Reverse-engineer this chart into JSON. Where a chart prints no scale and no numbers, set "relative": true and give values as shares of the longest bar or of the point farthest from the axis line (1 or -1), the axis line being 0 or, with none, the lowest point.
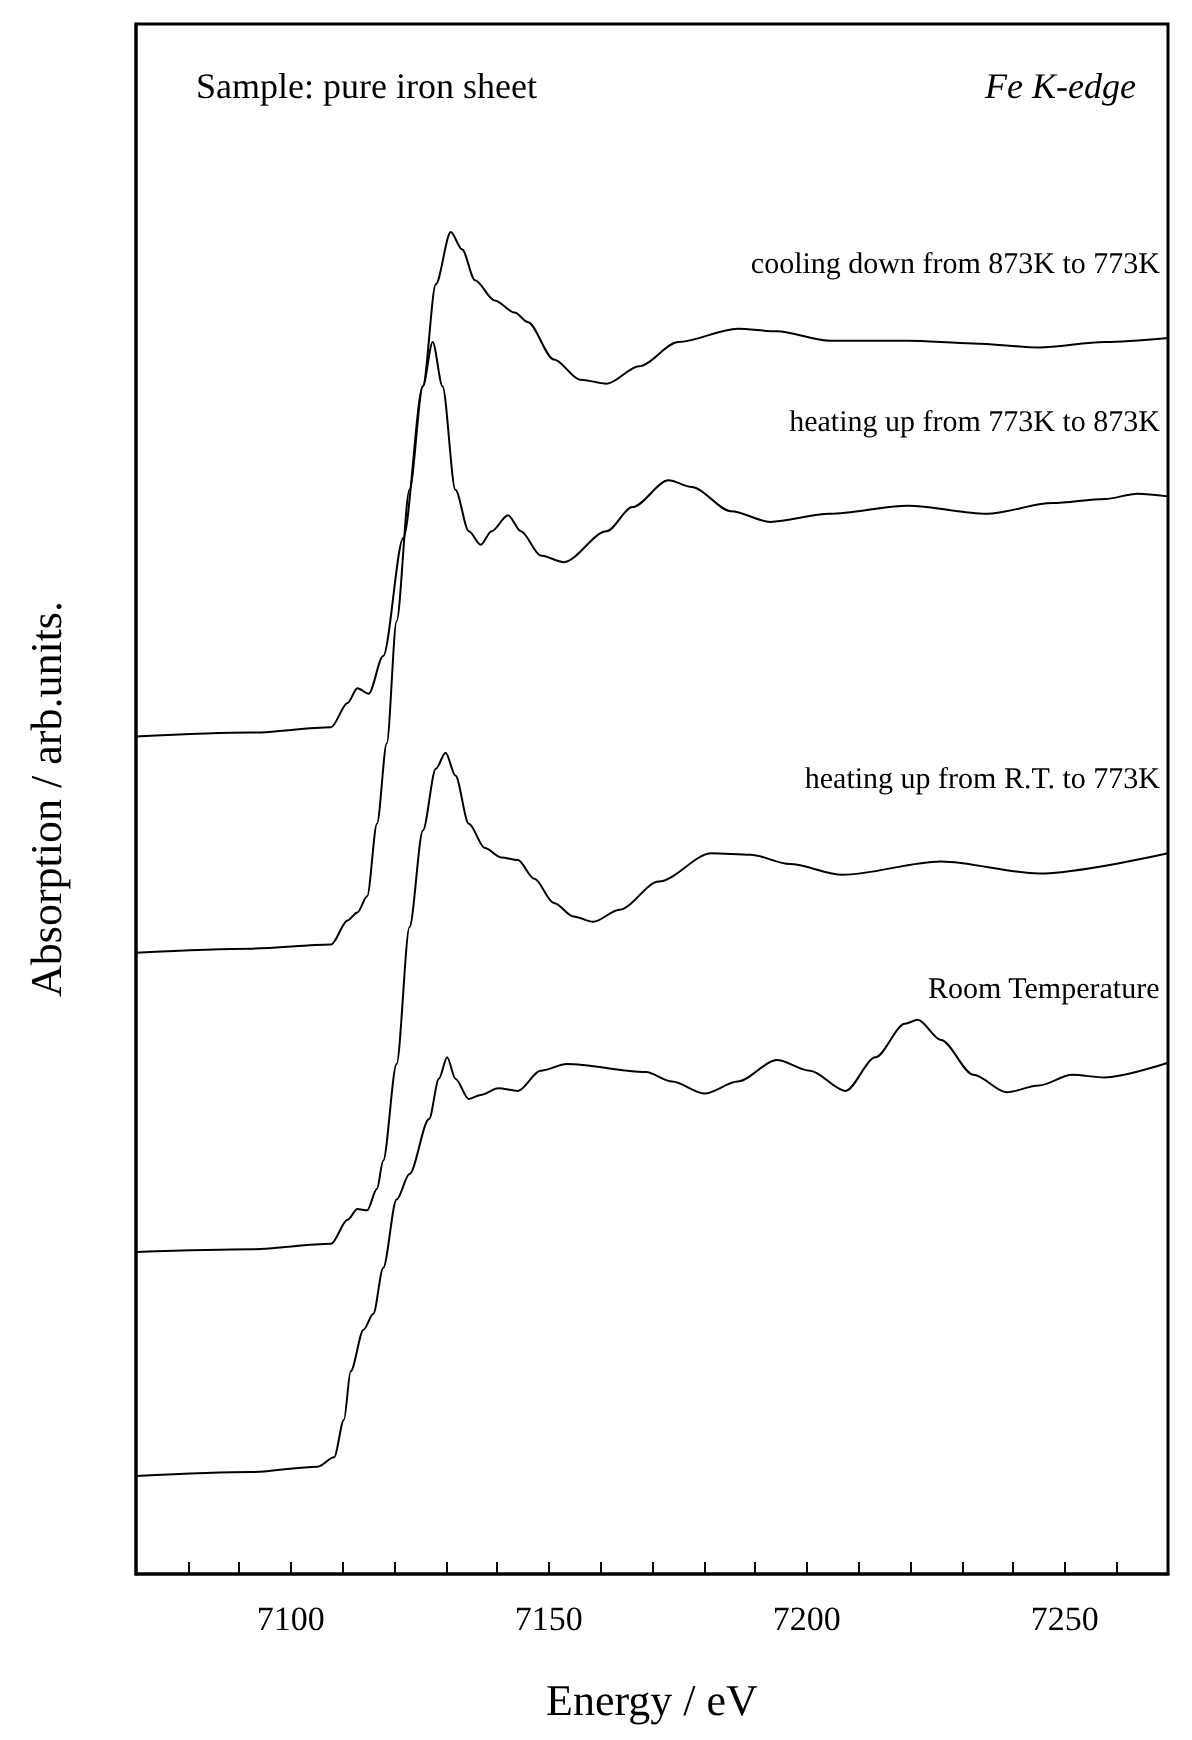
{
  "chart_data": {
    "type": "line",
    "xlabel": "Energy / eV",
    "ylabel": "Absorption / arb.units.",
    "relative": true,
    "legend": false,
    "grid": false,
    "marker": "none",
    "line_style": "solid",
    "annotations": [
      "Sample: pure iron sheet",
      "Fe K-edge"
    ],
    "xlim": [
      7070,
      7270
    ],
    "xticks": [
      {
        "value": 7080,
        "label": null
      },
      {
        "value": 7090,
        "label": null
      },
      7100,
      {
        "value": 7110,
        "label": null
      },
      {
        "value": 7120,
        "label": null
      },
      {
        "value": 7130,
        "label": null
      },
      {
        "value": 7140,
        "label": null
      },
      7150,
      {
        "value": 7160,
        "label": null
      },
      {
        "value": 7170,
        "label": null
      },
      {
        "value": 7180,
        "label": null
      },
      {
        "value": 7190,
        "label": null
      },
      7200,
      {
        "value": 7210,
        "label": null
      },
      {
        "value": 7220,
        "label": null
      },
      {
        "value": 7230,
        "label": null
      },
      {
        "value": 7240,
        "label": null
      },
      7250,
      {
        "value": 7260,
        "label": null
      }
    ],
    "series": [
      {
        "name": "cooling down from 873K to 773K",
        "color": "#000000",
        "x": [
          7070,
          7092.5,
          7107.8,
          7111,
          7112.9,
          7115.1,
          7117.9,
          7121.8,
          7125.6,
          7128.1,
          7131,
          7133.2,
          7135.7,
          7139.5,
          7143.4,
          7145.9,
          7151,
          7156.1,
          7161.2,
          7167.5,
          7175.1,
          7186.6,
          7194.2,
          7204.4,
          7219.6,
          7232.3,
          7245,
          7257.7,
          7270
        ],
        "values": [
          0.624,
          0.627,
          0.631,
          0.649,
          0.66,
          0.656,
          0.684,
          0.772,
          0.885,
          0.961,
          1,
          0.987,
          0.964,
          0.949,
          0.94,
          0.933,
          0.905,
          0.89,
          0.887,
          0.9,
          0.918,
          0.928,
          0.926,
          0.919,
          0.919,
          0.917,
          0.914,
          0.918,
          0.921
        ]
      },
      {
        "name": "heating up from 773K to 873K",
        "color": "#000000",
        "x": [
          7070,
          7092.5,
          7107.8,
          7111,
          7112.9,
          7114.8,
          7116.7,
          7118.6,
          7120.5,
          7123,
          7125.6,
          7127.5,
          7129.4,
          7131.9,
          7134.5,
          7136.8,
          7138.9,
          7142.1,
          7144.6,
          7148.4,
          7152.9,
          7161.2,
          7166.2,
          7173.2,
          7177.7,
          7185.3,
          7192.9,
          7204.4,
          7219.6,
          7234.9,
          7247.6,
          7257.7,
          7264.1,
          7270
        ],
        "values": [
          0.463,
          0.466,
          0.469,
          0.487,
          0.493,
          0.505,
          0.559,
          0.619,
          0.71,
          0.808,
          0.885,
          0.918,
          0.885,
          0.808,
          0.777,
          0.767,
          0.777,
          0.789,
          0.777,
          0.759,
          0.754,
          0.777,
          0.795,
          0.815,
          0.81,
          0.792,
          0.784,
          0.79,
          0.796,
          0.79,
          0.798,
          0.801,
          0.805,
          0.803
        ]
      },
      {
        "name": "heating up from R.T. to 773K",
        "color": "#000000",
        "x": [
          7070,
          7092.5,
          7107.8,
          7111,
          7112.9,
          7114.8,
          7116.7,
          7117.9,
          7120.5,
          7123,
          7125.6,
          7128.1,
          7130,
          7131.9,
          7134.5,
          7137.6,
          7140.8,
          7144,
          7147.2,
          7151,
          7154.8,
          7158.6,
          7163.7,
          7171.3,
          7181.5,
          7189.1,
          7196.7,
          7206.9,
          7226,
          7245,
          7270
        ],
        "values": [
          0.24,
          0.242,
          0.246,
          0.264,
          0.272,
          0.271,
          0.287,
          0.308,
          0.38,
          0.482,
          0.554,
          0.6,
          0.612,
          0.595,
          0.559,
          0.541,
          0.534,
          0.532,
          0.518,
          0.5,
          0.49,
          0.486,
          0.495,
          0.516,
          0.537,
          0.536,
          0.529,
          0.521,
          0.531,
          0.522,
          0.537
        ]
      },
      {
        "name": "Room Temperature",
        "color": "#000000",
        "x": [
          7070,
          7092.5,
          7105.2,
          7108.4,
          7110.3,
          7111.6,
          7114.1,
          7116,
          7117.9,
          7120.5,
          7123,
          7126.8,
          7128.7,
          7130.3,
          7131.9,
          7134.5,
          7136.8,
          7140.2,
          7144,
          7148.4,
          7153.5,
          7168.8,
          7173.9,
          7180.2,
          7186.6,
          7194.2,
          7200.6,
          7207.5,
          7213.3,
          7219,
          7221.5,
          7226,
          7232.3,
          7238.7,
          7245,
          7251.4,
          7257.7,
          7270
        ],
        "values": [
          0.073,
          0.076,
          0.08,
          0.087,
          0.115,
          0.151,
          0.182,
          0.194,
          0.228,
          0.279,
          0.298,
          0.339,
          0.369,
          0.385,
          0.369,
          0.354,
          0.357,
          0.362,
          0.36,
          0.375,
          0.38,
          0.374,
          0.367,
          0.358,
          0.367,
          0.383,
          0.375,
          0.36,
          0.385,
          0.41,
          0.413,
          0.398,
          0.372,
          0.359,
          0.364,
          0.372,
          0.37,
          0.381
        ]
      }
    ]
  }
}
